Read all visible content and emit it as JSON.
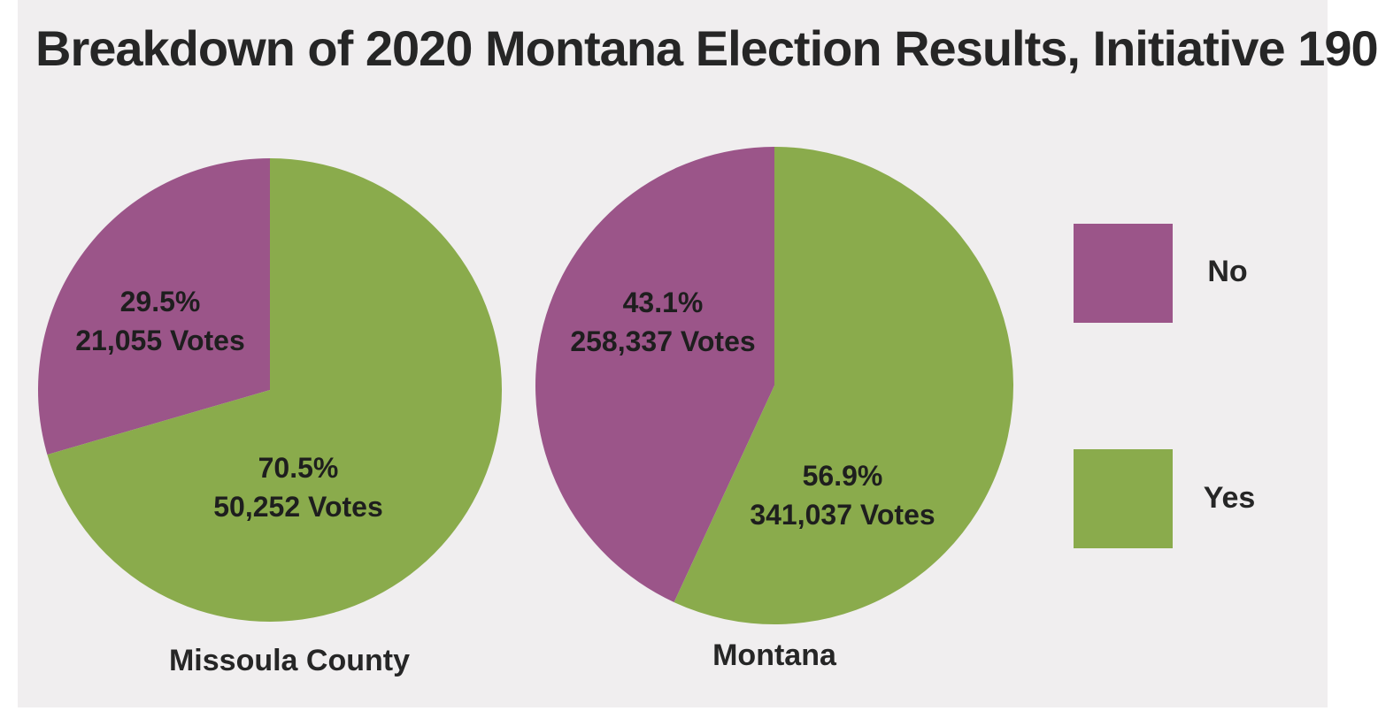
{
  "title": "Breakdown of 2020 Montana Election Results, Initiative 190",
  "colors": {
    "no": "#9b5589",
    "yes": "#8aab4c"
  },
  "legend": [
    {
      "label": "No",
      "color": "#9b5589"
    },
    {
      "label": "Yes",
      "color": "#8aab4c"
    }
  ],
  "chart_data": [
    {
      "type": "pie",
      "caption": "Missoula County",
      "slices": [
        {
          "category": "No",
          "percent": 29.5,
          "percent_label": "29.5%",
          "votes_label": "21,055 Votes",
          "votes": 21055
        },
        {
          "category": "Yes",
          "percent": 70.5,
          "percent_label": "70.5%",
          "votes_label": "50,252 Votes",
          "votes": 50252
        }
      ]
    },
    {
      "type": "pie",
      "caption": "Montana",
      "slices": [
        {
          "category": "No",
          "percent": 43.1,
          "percent_label": "43.1%",
          "votes_label": "258,337 Votes",
          "votes": 258337
        },
        {
          "category": "Yes",
          "percent": 56.9,
          "percent_label": "56.9%",
          "votes_label": "341,037 Votes",
          "votes": 341037
        }
      ]
    }
  ]
}
